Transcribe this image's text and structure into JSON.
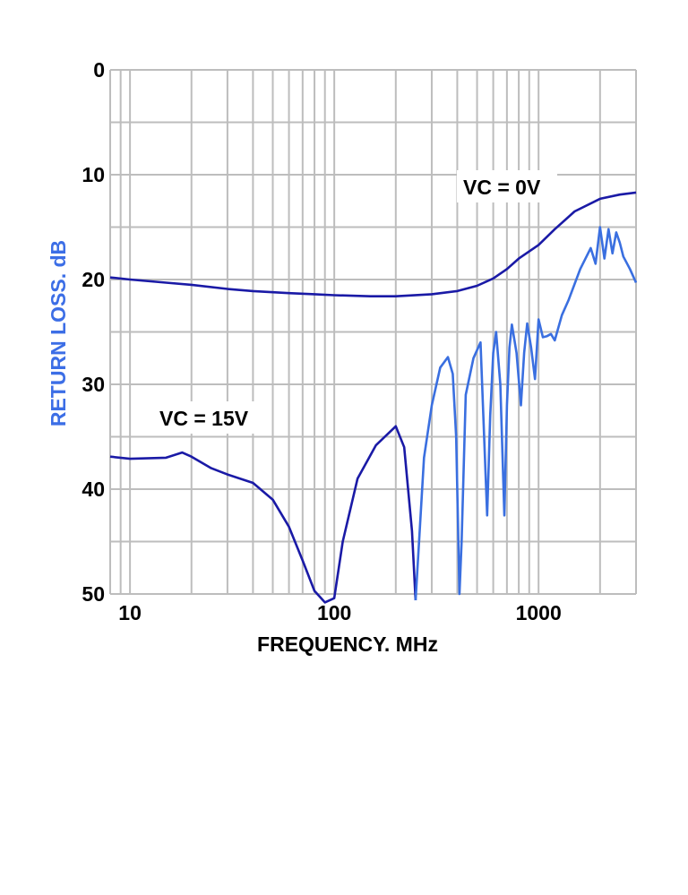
{
  "chart_data": {
    "type": "line",
    "title": "",
    "xlabel": "FREQUENCY.  MHz",
    "ylabel": "RETURN LOSS. dB",
    "x_scale": "log",
    "xlim": [
      8,
      3000
    ],
    "ylim": [
      0,
      50
    ],
    "y_inverted": true,
    "grid": true,
    "x_tick_labels": [
      {
        "value": 10,
        "label": "10"
      },
      {
        "value": 100,
        "label": "100"
      },
      {
        "value": 1000,
        "label": "1000"
      }
    ],
    "y_tick_labels": [
      {
        "value": 0,
        "label": "0"
      },
      {
        "value": 10,
        "label": "10"
      },
      {
        "value": 20,
        "label": "20"
      },
      {
        "value": 30,
        "label": "30"
      },
      {
        "value": 40,
        "label": "40"
      },
      {
        "value": 50,
        "label": "50"
      }
    ],
    "annotations": [
      {
        "text": "VC = 0V",
        "series": "VC = 0V"
      },
      {
        "text": "VC = 15V",
        "series": "VC = 15V"
      }
    ],
    "colors": {
      "ylabel": "#3c6ee6",
      "line_dark": "#1a1aa6",
      "line_light": "#3a6fe0",
      "grid": "#bdbdbd"
    },
    "series": [
      {
        "name": "VC = 0V",
        "x": [
          8,
          10,
          15,
          20,
          30,
          40,
          60,
          80,
          100,
          150,
          200,
          300,
          400,
          500,
          600,
          700,
          800,
          1000,
          1200,
          1500,
          2000,
          2500,
          3000
        ],
        "y": [
          19.8,
          20.0,
          20.3,
          20.5,
          20.9,
          21.1,
          21.3,
          21.4,
          21.5,
          21.6,
          21.6,
          21.4,
          21.1,
          20.6,
          19.9,
          19.0,
          18.0,
          16.7,
          15.2,
          13.5,
          12.3,
          11.9,
          11.7
        ]
      },
      {
        "name": "VC = 15V",
        "x": [
          8,
          10,
          15,
          18,
          20,
          25,
          30,
          40,
          50,
          60,
          70,
          80,
          90,
          100,
          110,
          130,
          160,
          200,
          220,
          240,
          250,
          260,
          275,
          300,
          330,
          360,
          380,
          395,
          410,
          420,
          440,
          480,
          520,
          560,
          580,
          600,
          620,
          650,
          680,
          700,
          720,
          740,
          780,
          820,
          850,
          880,
          920,
          960,
          1000,
          1050,
          1100,
          1150,
          1200,
          1300,
          1400,
          1600,
          1800,
          1900,
          2000,
          2100,
          2200,
          2300,
          2400,
          2500,
          2600,
          2800,
          3000
        ],
        "y": [
          36.9,
          37.1,
          37.0,
          36.5,
          36.9,
          38.0,
          38.6,
          39.4,
          41.0,
          43.6,
          46.8,
          49.7,
          50.8,
          50.4,
          45.0,
          39.0,
          35.8,
          34.0,
          36.0,
          44.0,
          50.6,
          45.0,
          37.0,
          32.0,
          28.4,
          27.4,
          29.0,
          35.0,
          50.0,
          45.0,
          31.0,
          27.5,
          26.0,
          42.5,
          33.0,
          27.0,
          25.0,
          30.0,
          42.5,
          32.0,
          26.5,
          24.3,
          27.0,
          32.0,
          27.0,
          24.2,
          26.5,
          29.5,
          23.8,
          25.5,
          25.4,
          25.2,
          25.8,
          23.4,
          22.0,
          19.0,
          17.0,
          18.5,
          15.0,
          18.0,
          15.2,
          17.5,
          15.5,
          16.5,
          17.8,
          19.0,
          20.3
        ]
      }
    ]
  }
}
